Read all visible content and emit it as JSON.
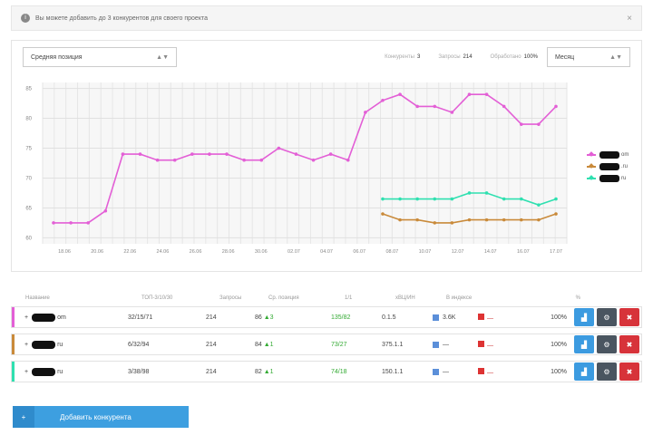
{
  "notice": {
    "text": "Вы можете добавить до 3 конкурентов для своего проекта",
    "close": "×",
    "icon": "info-icon"
  },
  "toolbar": {
    "select_label": "Средняя позиция",
    "metrics": [
      {
        "label": "Конкуренты",
        "value": "3"
      },
      {
        "label": "Запросы",
        "value": "214"
      },
      {
        "label": "Обработано",
        "value": "100%"
      }
    ],
    "period_label": "Месяц"
  },
  "chart_data": {
    "type": "line",
    "y_ticks": [
      "85",
      "80",
      "75",
      "70",
      "65",
      "60"
    ],
    "x_ticks": [
      "18.06",
      "20.06",
      "22.06",
      "24.06",
      "26.06",
      "28.06",
      "30.06",
      "02.07",
      "04.07",
      "06.07",
      "08.07",
      "10.07",
      "12.07",
      "14.07",
      "16.07",
      "17.07"
    ],
    "ylim": [
      59,
      86
    ],
    "series": [
      {
        "color": "#e35fd6",
        "values": [
          62.5,
          62.5,
          62.5,
          64.5,
          74,
          74,
          73,
          73,
          74,
          74,
          74,
          73,
          73,
          75,
          74,
          73,
          74,
          73,
          81,
          83,
          84,
          82,
          82,
          81,
          84,
          84,
          82,
          79,
          79,
          82
        ]
      },
      {
        "color": "#2fe0b0",
        "values": [
          null,
          null,
          null,
          null,
          null,
          null,
          null,
          null,
          null,
          null,
          null,
          null,
          null,
          null,
          null,
          null,
          null,
          null,
          null,
          66.5,
          66.5,
          66.5,
          66.5,
          66.5,
          67.5,
          67.5,
          66.5,
          66.5,
          65.5,
          66.5
        ]
      },
      {
        "color": "#c98a3a",
        "values": [
          null,
          null,
          null,
          null,
          null,
          null,
          null,
          null,
          null,
          null,
          null,
          null,
          null,
          null,
          null,
          null,
          null,
          null,
          null,
          64,
          63,
          63,
          62.5,
          62.5,
          63,
          63,
          63,
          63,
          63,
          64
        ]
      }
    ],
    "legend_position": "right"
  },
  "legend": [
    {
      "color": "#e35fd6",
      "suffix": "om"
    },
    {
      "color": "#c98a3a",
      "suffix": ".ru"
    },
    {
      "color": "#2fe0b0",
      "suffix": "ru"
    }
  ],
  "table": {
    "headers": [
      "Название",
      "ТОП-3/10/30",
      "Запросы",
      "Ср. позиция",
      "1/1",
      "хВЦ/ИН",
      "В индексе",
      "%"
    ],
    "rows": [
      {
        "color": "#e35fd6",
        "name_prefix": "+ ",
        "name_suffix": "om",
        "top": "32/15/71",
        "queries": "214",
        "avg": "86",
        "avg_delta": "▲3",
        "ratio": "135/82",
        "vc": "0.1.5",
        "index": "3.6K",
        "yandex": "—",
        "percent": "100%"
      },
      {
        "color": "#c98a3a",
        "name_prefix": "+ ",
        "name_suffix": "ru",
        "top": "6/32/94",
        "queries": "214",
        "avg": "84",
        "avg_delta": "▲1",
        "ratio": "73/27",
        "vc": "375.1.1",
        "index": "—",
        "yandex": "—",
        "percent": "100%"
      },
      {
        "color": "#2fe0b0",
        "name_prefix": "+ ",
        "name_suffix": "ru",
        "top": "3/38/98",
        "queries": "214",
        "avg": "82",
        "avg_delta": "▲1",
        "ratio": "74/18",
        "vc": "150.1.1",
        "index": "—",
        "yandex": "—",
        "percent": "100%"
      }
    ]
  },
  "add_button": {
    "label": "Добавить конкурента",
    "icon": "plus-icon"
  }
}
